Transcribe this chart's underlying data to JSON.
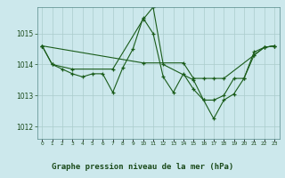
{
  "title": "Graphe pression niveau de la mer (hPa)",
  "background_color": "#cce8ec",
  "grid_color": "#aacccc",
  "line_color": "#1a5c1a",
  "text_color": "#1a4a1a",
  "xlim": [
    -0.5,
    23.5
  ],
  "ylim": [
    1011.6,
    1015.85
  ],
  "yticks": [
    1012,
    1013,
    1014,
    1015
  ],
  "xticks": [
    0,
    1,
    2,
    3,
    4,
    5,
    6,
    7,
    8,
    9,
    10,
    11,
    12,
    13,
    14,
    15,
    16,
    17,
    18,
    19,
    20,
    21,
    22,
    23
  ],
  "series": [
    {
      "x": [
        0,
        1,
        2,
        3,
        4,
        5,
        6,
        7,
        8,
        9,
        10,
        11,
        12,
        13,
        14,
        15,
        16,
        17,
        18,
        19,
        20,
        21,
        22,
        23
      ],
      "y": [
        1014.6,
        1014.0,
        1013.85,
        1013.7,
        1013.6,
        1013.7,
        1013.7,
        1013.1,
        1013.9,
        1014.5,
        1015.5,
        1015.0,
        1013.6,
        1013.1,
        1013.7,
        1013.2,
        1012.85,
        1012.85,
        1013.0,
        1013.55,
        1013.55,
        1014.4,
        1014.55,
        1014.6
      ]
    },
    {
      "x": [
        0,
        1,
        3,
        7,
        10,
        11,
        12,
        15,
        16,
        17,
        18,
        19,
        20,
        21,
        22,
        23
      ],
      "y": [
        1014.6,
        1014.0,
        1013.85,
        1013.85,
        1015.45,
        1015.85,
        1014.0,
        1013.5,
        1012.85,
        1012.25,
        1012.85,
        1013.05,
        1013.55,
        1014.3,
        1014.55,
        1014.6
      ]
    },
    {
      "x": [
        0,
        10,
        14,
        15,
        16,
        17,
        18,
        21,
        22,
        23
      ],
      "y": [
        1014.6,
        1014.05,
        1014.05,
        1013.55,
        1013.55,
        1013.55,
        1013.55,
        1014.3,
        1014.55,
        1014.6
      ]
    }
  ]
}
